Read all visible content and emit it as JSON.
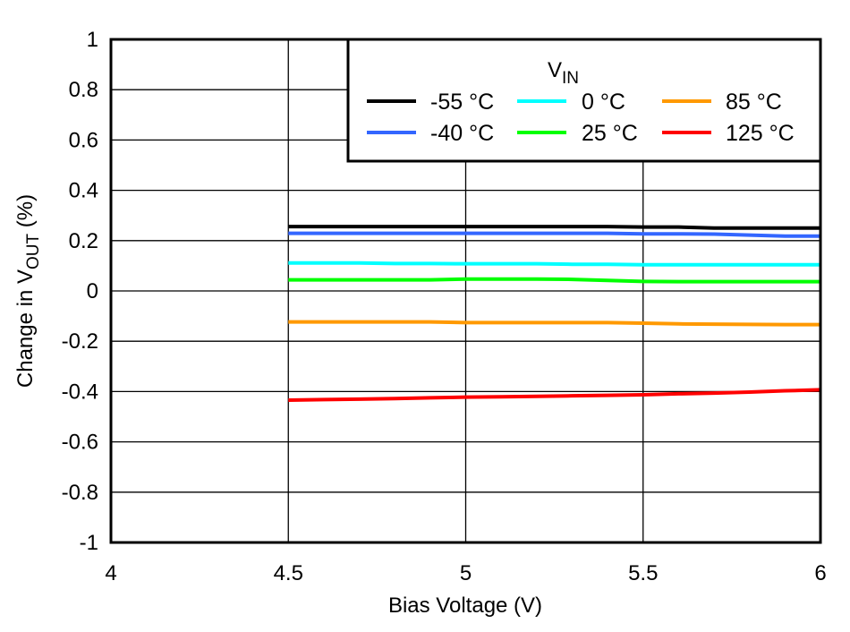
{
  "chart_data": {
    "type": "line",
    "xlabel": "Bias Voltage (V)",
    "ylabel_main": "Change in V",
    "ylabel_sub": "OUT",
    "ylabel_suffix": " (%)",
    "xlim": [
      4,
      6
    ],
    "ylim": [
      -1,
      1
    ],
    "xticks": [
      "4",
      "4.5",
      "5",
      "5.5",
      "6"
    ],
    "yticks": [
      "1",
      "0.8",
      "0.6",
      "0.4",
      "0.2",
      "0",
      "-0.2",
      "-0.4",
      "-0.6",
      "-0.8",
      "-1"
    ],
    "grid": true,
    "legend": {
      "position": "top-right",
      "title_main": "V",
      "title_sub": "IN"
    },
    "x": [
      4.5,
      4.6,
      4.7,
      4.8,
      4.9,
      5.0,
      5.1,
      5.2,
      5.3,
      5.4,
      5.5,
      5.6,
      5.7,
      5.8,
      5.9,
      6.0
    ],
    "series": [
      {
        "name": "-55 °C",
        "color": "#000000",
        "values": [
          0.256,
          0.256,
          0.256,
          0.256,
          0.256,
          0.256,
          0.256,
          0.256,
          0.256,
          0.256,
          0.254,
          0.254,
          0.25,
          0.25,
          0.25,
          0.25
        ]
      },
      {
        "name": "0 °C",
        "color": "#00FFFF",
        "values": [
          0.111,
          0.111,
          0.111,
          0.109,
          0.109,
          0.108,
          0.108,
          0.108,
          0.106,
          0.106,
          0.104,
          0.104,
          0.104,
          0.104,
          0.104,
          0.104
        ]
      },
      {
        "name": "85 °C",
        "color": "#FF9900",
        "values": [
          -0.123,
          -0.123,
          -0.123,
          -0.123,
          -0.123,
          -0.126,
          -0.126,
          -0.126,
          -0.126,
          -0.126,
          -0.128,
          -0.131,
          -0.132,
          -0.133,
          -0.134,
          -0.134
        ]
      },
      {
        "name": "-40 °C",
        "color": "#3366FF",
        "values": [
          0.229,
          0.229,
          0.229,
          0.229,
          0.229,
          0.229,
          0.229,
          0.229,
          0.229,
          0.229,
          0.227,
          0.227,
          0.226,
          0.222,
          0.218,
          0.218
        ]
      },
      {
        "name": "25 °C",
        "color": "#00FF00",
        "values": [
          0.044,
          0.044,
          0.044,
          0.044,
          0.044,
          0.047,
          0.047,
          0.047,
          0.046,
          0.042,
          0.038,
          0.037,
          0.037,
          0.037,
          0.037,
          0.037
        ]
      },
      {
        "name": "125 °C",
        "color": "#FF0000",
        "values": [
          -0.434,
          -0.432,
          -0.43,
          -0.428,
          -0.425,
          -0.422,
          -0.421,
          -0.419,
          -0.417,
          -0.415,
          -0.413,
          -0.409,
          -0.406,
          -0.402,
          -0.397,
          -0.393
        ]
      }
    ]
  }
}
